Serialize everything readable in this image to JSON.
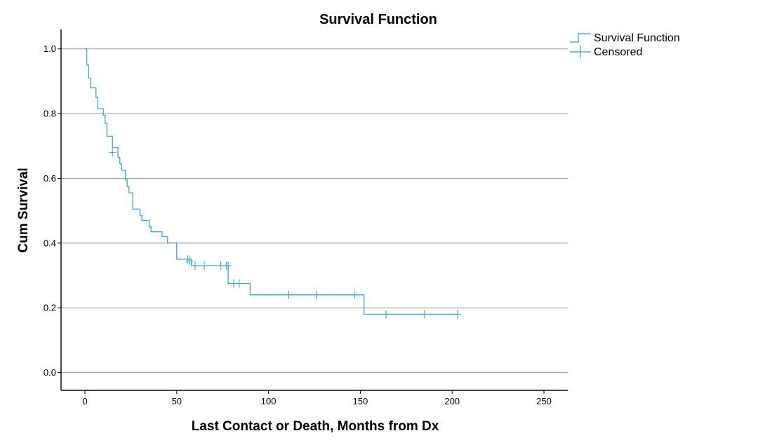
{
  "chart_data": {
    "type": "line",
    "title": "Survival Function",
    "xlabel": "Last Contact or Death, Months from Dx",
    "ylabel": "Cum Survival",
    "xlim": [
      -13,
      263
    ],
    "ylim": [
      -0.055,
      1.06
    ],
    "x_ticks": [
      0,
      50,
      100,
      150,
      200,
      250
    ],
    "y_ticks": [
      0.0,
      0.2,
      0.4,
      0.6,
      0.8,
      1.0
    ],
    "x_tick_labels": [
      "0",
      "50",
      "100",
      "150",
      "200",
      "250"
    ],
    "y_tick_labels": [
      "0.0",
      "0.2",
      "0.4",
      "0.6",
      "0.8",
      "1.0"
    ],
    "grid": "horizontal",
    "legend_position": "top-right",
    "series": [
      {
        "name": "Survival Function",
        "kind": "step",
        "color": "#4aa8d8",
        "points": [
          [
            0,
            1.0
          ],
          [
            1,
            0.95
          ],
          [
            2,
            0.91
          ],
          [
            3,
            0.88
          ],
          [
            6,
            0.85
          ],
          [
            7,
            0.815
          ],
          [
            10,
            0.795
          ],
          [
            11,
            0.77
          ],
          [
            12,
            0.73
          ],
          [
            15,
            0.695
          ],
          [
            18,
            0.665
          ],
          [
            19,
            0.645
          ],
          [
            20,
            0.625
          ],
          [
            22,
            0.595
          ],
          [
            23,
            0.575
          ],
          [
            24,
            0.555
          ],
          [
            26,
            0.505
          ],
          [
            30,
            0.485
          ],
          [
            31,
            0.47
          ],
          [
            35,
            0.45
          ],
          [
            36,
            0.435
          ],
          [
            42,
            0.42
          ],
          [
            45,
            0.4
          ],
          [
            50,
            0.35
          ],
          [
            58,
            0.33
          ],
          [
            78,
            0.275
          ],
          [
            90,
            0.24
          ],
          [
            152,
            0.18
          ],
          [
            203,
            0.18
          ]
        ]
      },
      {
        "name": "Censored",
        "kind": "markers",
        "color": "#4aa8d8",
        "points": [
          [
            15,
            0.68
          ],
          [
            56,
            0.35
          ],
          [
            57,
            0.345
          ],
          [
            60,
            0.33
          ],
          [
            65,
            0.33
          ],
          [
            74,
            0.33
          ],
          [
            77,
            0.33
          ],
          [
            78,
            0.33
          ],
          [
            81,
            0.275
          ],
          [
            84,
            0.275
          ],
          [
            111,
            0.24
          ],
          [
            126,
            0.24
          ],
          [
            147,
            0.24
          ],
          [
            164,
            0.18
          ],
          [
            185,
            0.18
          ],
          [
            203,
            0.18
          ]
        ]
      }
    ]
  }
}
